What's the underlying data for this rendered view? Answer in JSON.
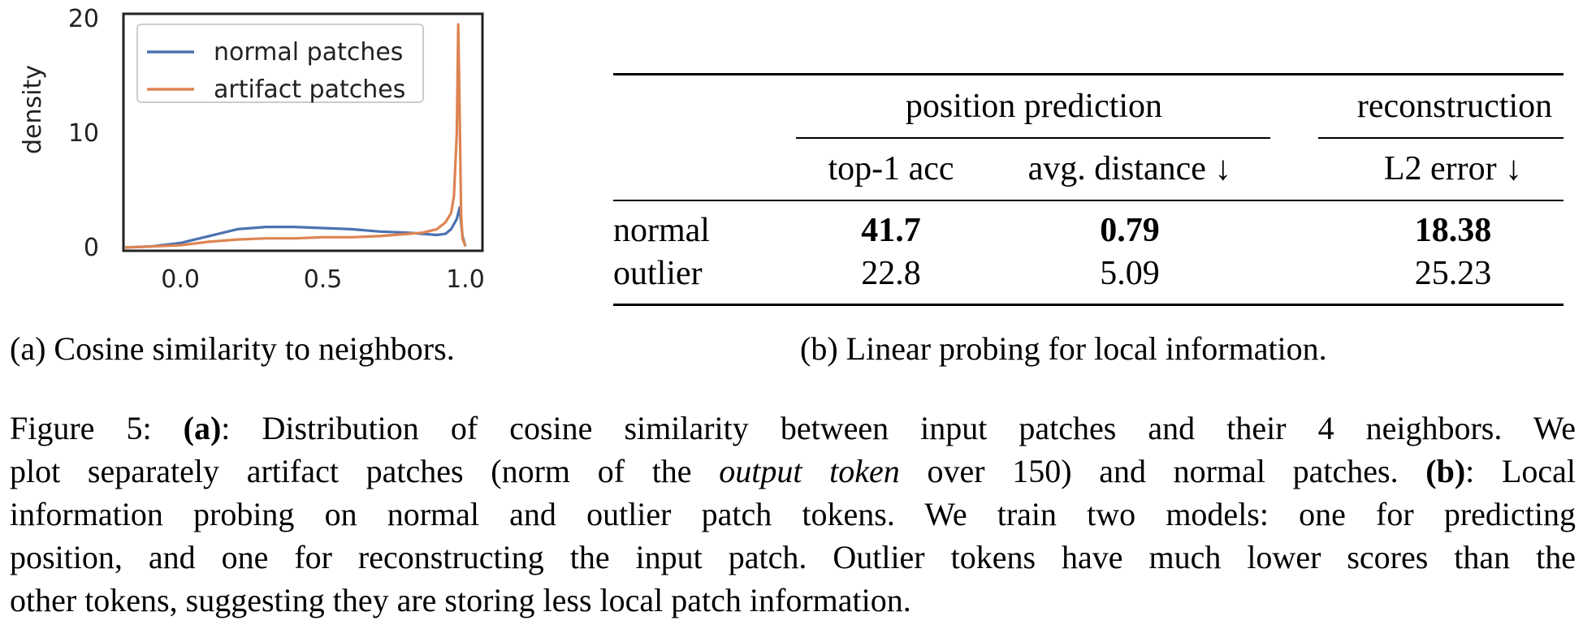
{
  "chart_data": {
    "type": "line",
    "ylabel": "density",
    "xlabel": "",
    "xlim": [
      -0.2,
      1.06
    ],
    "ylim": [
      0,
      20
    ],
    "xticks": [
      "0.0",
      "0.5",
      "1.0"
    ],
    "yticks": [
      "0",
      "10",
      "20"
    ],
    "grid": false,
    "legend_position": "top-left",
    "series": [
      {
        "name": "normal patches",
        "color": "#4C72B0",
        "x": [
          -0.2,
          -0.1,
          0.0,
          0.1,
          0.2,
          0.3,
          0.4,
          0.5,
          0.6,
          0.7,
          0.8,
          0.85,
          0.9,
          0.93,
          0.95,
          0.97,
          0.98,
          0.99,
          1.0
        ],
        "y": [
          0.0,
          0.1,
          0.4,
          1.0,
          1.6,
          1.8,
          1.8,
          1.7,
          1.6,
          1.4,
          1.3,
          1.2,
          1.1,
          1.2,
          1.6,
          2.5,
          3.5,
          1.0,
          0.1
        ]
      },
      {
        "name": "artifact patches",
        "color": "#DD8452",
        "x": [
          -0.2,
          -0.1,
          0.0,
          0.1,
          0.2,
          0.3,
          0.4,
          0.5,
          0.6,
          0.7,
          0.8,
          0.85,
          0.9,
          0.93,
          0.95,
          0.96,
          0.97,
          0.975,
          0.98,
          0.985,
          0.99,
          1.0
        ],
        "y": [
          0.0,
          0.1,
          0.2,
          0.5,
          0.7,
          0.8,
          0.8,
          0.9,
          0.9,
          1.0,
          1.2,
          1.3,
          1.6,
          2.2,
          3.0,
          4.5,
          10.0,
          19.5,
          12.0,
          3.0,
          0.8,
          0.1
        ]
      }
    ]
  },
  "caption_a": "(a) Cosine similarity to neighbors.",
  "caption_b": "(b) Linear probing for local information.",
  "table": {
    "group1": "position prediction",
    "group2": "reconstruction",
    "col1": "top-1 acc",
    "col2": "avg. distance ↓",
    "col3": "L2 error ↓",
    "rows": [
      {
        "label": "normal",
        "v1": "41.7",
        "v2": "0.79",
        "v3": "18.38"
      },
      {
        "label": "outlier",
        "v1": "22.8",
        "v2": "5.09",
        "v3": "25.23"
      }
    ]
  },
  "figure_caption": {
    "prefix": "Figure 5: ",
    "a_label": "(a)",
    "a_text": ": Distribution of cosine similarity between input patches and their 4 neighbors.  We plot separately artifact patches (norm of the ",
    "emph": "output token",
    "mid_text": " over 150) and normal patches. ",
    "b_label": "(b)",
    "b_text": ": Local information probing on normal and outlier patch tokens.  We train two models: one for predicting position, and one for reconstructing the input patch. Outlier tokens have much lower scores than the other tokens, suggesting they are storing less local patch information."
  }
}
